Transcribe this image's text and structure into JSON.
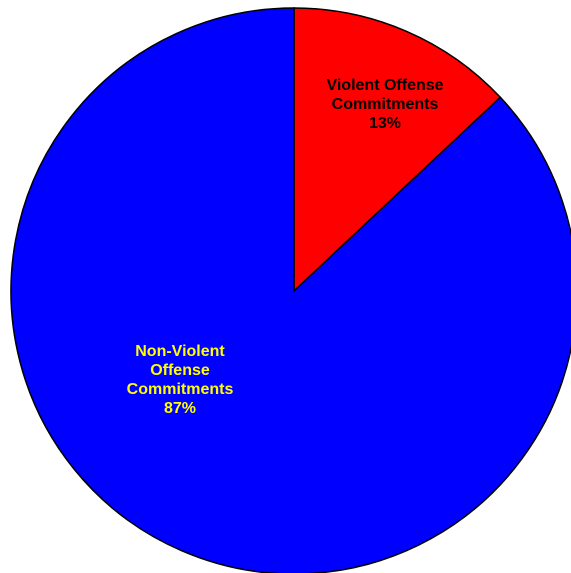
{
  "chart_data": {
    "type": "pie",
    "slices": [
      {
        "label_lines": [
          "Violent Offense",
          "Commitments"
        ],
        "value": 13,
        "value_label": "13%",
        "color": "#ff0000",
        "label_color": "#000000"
      },
      {
        "label_lines": [
          "Non-Violent",
          "Offense",
          "Commitments"
        ],
        "value": 87,
        "value_label": "87%",
        "color": "#0000ff",
        "label_color": "#ffff00"
      }
    ],
    "start_angle_deg": 0,
    "direction": "clockwise",
    "outline_color": "#000000"
  }
}
